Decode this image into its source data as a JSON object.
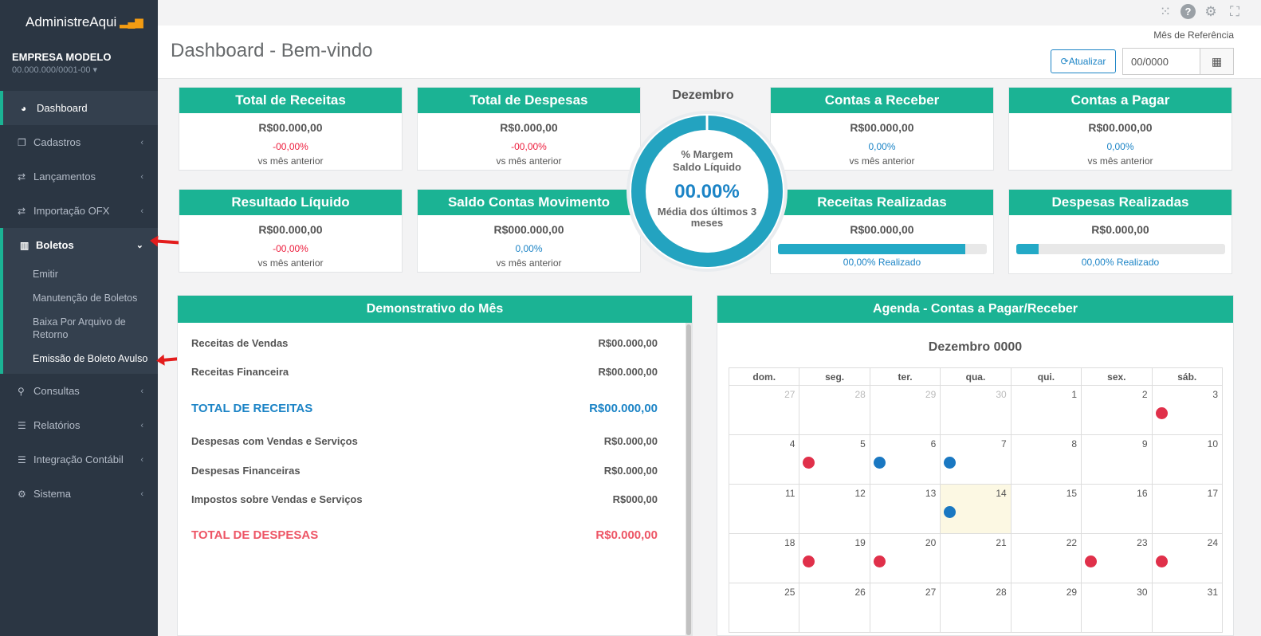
{
  "app": {
    "brand": "AdministreAqui",
    "brand_icon": "bar-chart-icon",
    "company": "EMPRESA MODELO",
    "cnpj": "00.000.000/0001-00"
  },
  "sidebar": {
    "items": [
      {
        "label": "Dashboard",
        "icon": "tachometer-icon"
      },
      {
        "label": "Cadastros",
        "icon": "copy-icon"
      },
      {
        "label": "Lançamentos",
        "icon": "exchange-icon"
      },
      {
        "label": "Importação OFX",
        "icon": "exchange-icon"
      },
      {
        "label": "Boletos",
        "icon": "barcode-icon"
      },
      {
        "label": "Consultas",
        "icon": "search-icon"
      },
      {
        "label": "Relatórios",
        "icon": "list-icon"
      },
      {
        "label": "Integração Contábil",
        "icon": "list-icon"
      },
      {
        "label": "Sistema",
        "icon": "cogs-icon"
      }
    ],
    "boletos_sub": [
      "Emitir",
      "Manutenção de Boletos",
      "Baixa Por Arquivo de Retorno",
      "Emissão de Boleto Avulso"
    ]
  },
  "header": {
    "title": "Dashboard - Bem-vindo",
    "ref_label": "Mês de Referência",
    "update_button": "Atualizar",
    "date_value": "00/0000"
  },
  "cards": {
    "receitas": {
      "title": "Total de Receitas",
      "value": "R$00.000,00",
      "pct": "-00,00%",
      "vs": "vs mês anterior"
    },
    "despesas": {
      "title": "Total de Despesas",
      "value": "R$0.000,00",
      "pct": "-00,00%",
      "vs": "vs mês anterior"
    },
    "receber": {
      "title": "Contas a Receber",
      "value": "R$00.000,00",
      "pct": "0,00%",
      "vs": "vs mês anterior"
    },
    "pagar": {
      "title": "Contas a Pagar",
      "value": "R$00.000,00",
      "pct": "0,00%",
      "vs": "vs mês anterior"
    },
    "resultado": {
      "title": "Resultado Líquido",
      "value": "R$00.000,00",
      "pct": "-00,00%",
      "vs": "vs mês anterior"
    },
    "saldo": {
      "title": "Saldo Contas Movimento",
      "value": "R$000.000,00",
      "pct": "0,00%",
      "vs": "vs mês anterior"
    },
    "rec_real": {
      "title": "Receitas Realizadas",
      "value": "R$00.000,00",
      "progress": 0.9,
      "pct": "00,00%",
      "suffix": " Realizado"
    },
    "desp_real": {
      "title": "Despesas Realizadas",
      "value": "R$0.000,00",
      "progress": 0.11,
      "pct": "00,00%",
      "suffix": " Realizado"
    }
  },
  "donut": {
    "month": "Dezembro",
    "label_top": "% Margem Saldo Líquido",
    "value": "00.00%",
    "label_bottom": "Média dos últimos 3 meses",
    "fill": 1.0
  },
  "demonstrativo": {
    "title": "Demonstrativo do Mês",
    "rows": [
      {
        "label": "Receitas de Vendas",
        "value": "R$00.000,00"
      },
      {
        "label": "Receitas Financeira",
        "value": "R$00.000,00"
      },
      {
        "label": "TOTAL DE RECEITAS",
        "value": "R$00.000,00"
      },
      {
        "label": "Despesas com Vendas e Serviços",
        "value": "R$0.000,00"
      },
      {
        "label": "Despesas Financeiras",
        "value": "R$0.000,00"
      },
      {
        "label": "Impostos sobre Vendas e Serviços",
        "value": "R$000,00"
      },
      {
        "label": "TOTAL DE DESPESAS",
        "value": "R$0.000,00"
      }
    ]
  },
  "agenda": {
    "title": "Agenda - Contas a Pagar/Receber",
    "month": "Dezembro 0000",
    "weekdays": [
      "dom.",
      "seg.",
      "ter.",
      "qua.",
      "qui.",
      "sex.",
      "sáb."
    ],
    "weeks": [
      [
        {
          "d": "27",
          "om": true
        },
        {
          "d": "28",
          "om": true
        },
        {
          "d": "29",
          "om": true
        },
        {
          "d": "30",
          "om": true
        },
        {
          "d": "1"
        },
        {
          "d": "2"
        },
        {
          "d": "3",
          "ev": "r"
        }
      ],
      [
        {
          "d": "4"
        },
        {
          "d": "5",
          "ev": "r"
        },
        {
          "d": "6",
          "ev": "b"
        },
        {
          "d": "7",
          "ev": "b"
        },
        {
          "d": "8"
        },
        {
          "d": "9"
        },
        {
          "d": "10"
        }
      ],
      [
        {
          "d": "11"
        },
        {
          "d": "12"
        },
        {
          "d": "13"
        },
        {
          "d": "14",
          "today": true,
          "ev": "b"
        },
        {
          "d": "15"
        },
        {
          "d": "16"
        },
        {
          "d": "17"
        }
      ],
      [
        {
          "d": "18"
        },
        {
          "d": "19",
          "ev": "r"
        },
        {
          "d": "20",
          "ev": "r"
        },
        {
          "d": "21"
        },
        {
          "d": "22"
        },
        {
          "d": "23",
          "ev": "r"
        },
        {
          "d": "24",
          "ev": "r"
        }
      ],
      [
        {
          "d": "25"
        },
        {
          "d": "26"
        },
        {
          "d": "27"
        },
        {
          "d": "28"
        },
        {
          "d": "29"
        },
        {
          "d": "30"
        },
        {
          "d": "31"
        }
      ]
    ]
  }
}
